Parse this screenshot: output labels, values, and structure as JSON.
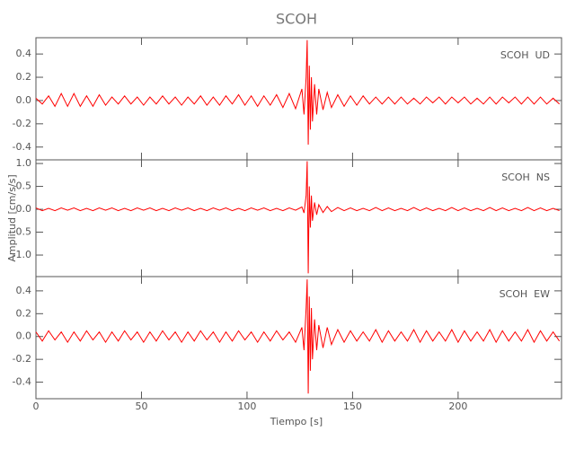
{
  "chart_data": {
    "type": "line",
    "title": "SCOH",
    "xlabel": "Tiempo [s]",
    "ylabel": "Amplitud [cm/s/s]",
    "xlim": [
      0,
      249
    ],
    "xticks": [
      0,
      50,
      100,
      150,
      200
    ],
    "x": [
      0,
      3,
      6,
      9,
      12,
      15,
      18,
      21,
      24,
      27,
      30,
      33,
      36,
      39,
      42,
      45,
      48,
      51,
      54,
      57,
      60,
      63,
      66,
      69,
      72,
      75,
      78,
      81,
      84,
      87,
      90,
      93,
      96,
      99,
      102,
      105,
      108,
      111,
      114,
      117,
      120,
      123,
      126,
      127,
      128,
      128.5,
      129,
      129.5,
      130,
      130.5,
      131,
      132,
      133,
      134,
      136,
      138,
      140,
      143,
      146,
      149,
      152,
      155,
      158,
      161,
      164,
      167,
      170,
      173,
      176,
      179,
      182,
      185,
      188,
      191,
      194,
      197,
      200,
      203,
      206,
      209,
      212,
      215,
      218,
      221,
      224,
      227,
      230,
      233,
      236,
      239,
      242,
      245,
      248
    ],
    "panels": [
      {
        "label": "SCOH  UD",
        "ylim": [
          -0.51,
          0.54
        ],
        "yticks": [
          0.4,
          0.2,
          {
            "value": 0,
            "label": "0.0"
          },
          -0.2,
          -0.4
        ],
        "series": [
          {
            "color": "#ff0000",
            "values": [
              0.02,
              -0.03,
              0.04,
              -0.05,
              0.06,
              -0.05,
              0.06,
              -0.05,
              0.04,
              -0.05,
              0.05,
              -0.04,
              0.03,
              -0.03,
              0.04,
              -0.03,
              0.03,
              -0.04,
              0.03,
              -0.03,
              0.04,
              -0.03,
              0.03,
              -0.04,
              0.03,
              -0.03,
              0.04,
              -0.04,
              0.03,
              -0.04,
              0.04,
              -0.03,
              0.05,
              -0.04,
              0.04,
              -0.05,
              0.04,
              -0.04,
              0.05,
              -0.06,
              0.06,
              -0.07,
              0.1,
              -0.12,
              0.2,
              0.52,
              -0.38,
              0.3,
              -0.25,
              0.2,
              -0.18,
              0.14,
              -0.12,
              0.1,
              -0.08,
              0.07,
              -0.06,
              0.05,
              -0.05,
              0.04,
              -0.04,
              0.04,
              -0.03,
              0.03,
              -0.03,
              0.03,
              -0.03,
              0.03,
              -0.03,
              0.02,
              -0.03,
              0.03,
              -0.02,
              0.03,
              -0.03,
              0.03,
              -0.02,
              0.03,
              -0.03,
              0.02,
              -0.03,
              0.03,
              -0.03,
              0.03,
              -0.02,
              0.03,
              -0.03,
              0.03,
              -0.03,
              0.03,
              -0.03,
              0.02,
              -0.03
            ]
          }
        ]
      },
      {
        "label": "SCOH  NS",
        "ylim": [
          -1.47,
          1.08
        ],
        "yticks": [
          {
            "value": 1,
            "label": "1.0"
          },
          0.5,
          {
            "value": 0,
            "label": "0.0"
          },
          -0.5,
          {
            "value": -1,
            "label": "-1.0"
          }
        ],
        "series": [
          {
            "color": "#ff0000",
            "values": [
              0.03,
              -0.03,
              0.02,
              -0.03,
              0.03,
              -0.02,
              0.03,
              -0.03,
              0.02,
              -0.03,
              0.03,
              -0.02,
              0.03,
              -0.03,
              0.02,
              -0.03,
              0.03,
              -0.02,
              0.03,
              -0.03,
              0.02,
              -0.03,
              0.03,
              -0.02,
              0.03,
              -0.03,
              0.02,
              -0.03,
              0.03,
              -0.02,
              0.03,
              -0.03,
              0.02,
              -0.03,
              0.03,
              -0.02,
              0.03,
              -0.03,
              0.02,
              -0.03,
              0.03,
              -0.02,
              0.05,
              -0.08,
              0.3,
              1.05,
              -1.4,
              0.5,
              -0.4,
              0.3,
              -0.25,
              0.15,
              -0.12,
              0.1,
              -0.07,
              0.06,
              -0.05,
              0.04,
              -0.03,
              0.03,
              -0.03,
              0.02,
              -0.03,
              0.04,
              -0.03,
              0.03,
              -0.03,
              0.02,
              -0.03,
              0.04,
              -0.03,
              0.03,
              -0.03,
              0.02,
              -0.03,
              0.04,
              -0.03,
              0.03,
              -0.03,
              0.02,
              -0.03,
              0.04,
              -0.03,
              0.03,
              -0.03,
              0.02,
              -0.03,
              0.04,
              -0.03,
              0.03,
              -0.03,
              0.02,
              -0.03
            ]
          }
        ]
      },
      {
        "label": "SCOH  EW",
        "ylim": [
          -0.545,
          0.525
        ],
        "yticks": [
          0.4,
          0.2,
          {
            "value": 0,
            "label": "0.0"
          },
          -0.2,
          -0.4
        ],
        "series": [
          {
            "color": "#ff0000",
            "values": [
              0.04,
              -0.04,
              0.05,
              -0.03,
              0.04,
              -0.05,
              0.04,
              -0.04,
              0.05,
              -0.03,
              0.04,
              -0.05,
              0.04,
              -0.04,
              0.05,
              -0.03,
              0.04,
              -0.05,
              0.04,
              -0.04,
              0.05,
              -0.03,
              0.04,
              -0.05,
              0.04,
              -0.04,
              0.05,
              -0.03,
              0.04,
              -0.05,
              0.04,
              -0.04,
              0.05,
              -0.03,
              0.04,
              -0.05,
              0.04,
              -0.04,
              0.05,
              -0.03,
              0.04,
              -0.05,
              0.08,
              -0.12,
              0.25,
              0.5,
              -0.5,
              0.35,
              -0.3,
              0.25,
              -0.2,
              0.15,
              -0.12,
              0.1,
              -0.1,
              0.08,
              -0.07,
              0.06,
              -0.05,
              0.05,
              -0.04,
              0.04,
              -0.04,
              0.06,
              -0.05,
              0.05,
              -0.04,
              0.04,
              -0.04,
              0.06,
              -0.05,
              0.05,
              -0.04,
              0.04,
              -0.04,
              0.06,
              -0.05,
              0.05,
              -0.04,
              0.04,
              -0.04,
              0.06,
              -0.05,
              0.05,
              -0.04,
              0.04,
              -0.04,
              0.06,
              -0.05,
              0.05,
              -0.04,
              0.04,
              -0.04
            ]
          }
        ]
      }
    ]
  }
}
